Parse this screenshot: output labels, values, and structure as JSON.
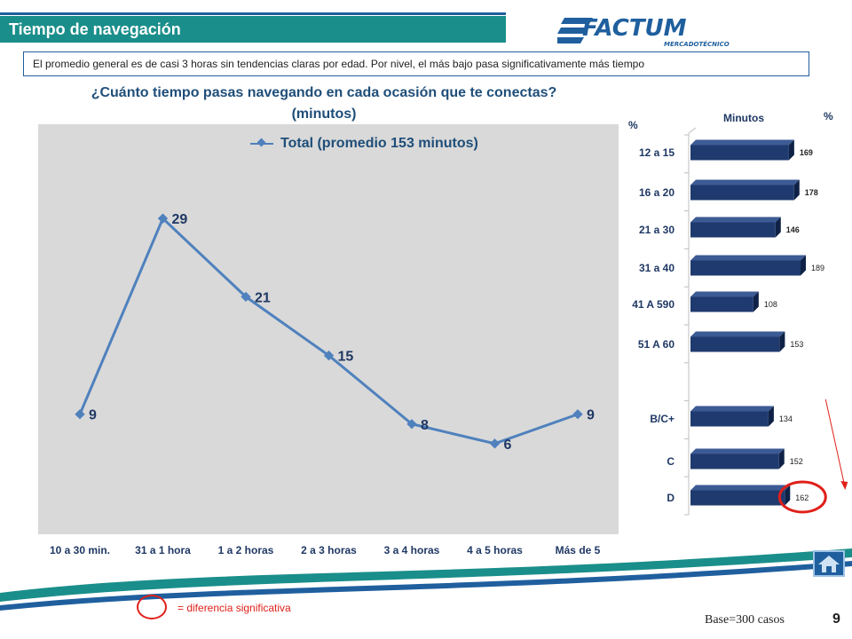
{
  "header": {
    "title": "Tiempo de navegación",
    "brand": "FACTUM",
    "brand_sub": "MERCADOTÉCNICO",
    "summary": "El promedio general es de casi 3 horas sin tendencias claras por edad. Por nivel, el más bajo pasa significativamente más tiempo"
  },
  "chart_data": [
    {
      "type": "line",
      "title": "¿Cuánto tiempo pasas navegando en cada ocasión que te conectas?",
      "subtitle": "(minutos)",
      "categories": [
        "10 a 30 min.",
        "31 a 1 hora",
        "1 a 2 horas",
        "2 a 3 horas",
        "3 a 4 horas",
        "4 a 5 horas",
        "Más de 5"
      ],
      "series": [
        {
          "name": "Total (promedio 153 minutos)",
          "values": [
            9,
            29,
            21,
            15,
            8,
            6,
            9
          ]
        }
      ],
      "ylim": [
        0,
        35
      ],
      "grid": false,
      "legend": "top",
      "colors": {
        "line": "#4f81bd",
        "panel": "#d9d9d9",
        "labels": "#1f3864"
      }
    },
    {
      "type": "bar",
      "orientation": "horizontal",
      "header_pct_left": "%",
      "header_minutes": "Minutos",
      "header_pct_right": "%",
      "categories": [
        "12 a 15",
        "16 a 20",
        "21 a 30",
        "31 a 40",
        "41 A 590",
        "51 A 60",
        "",
        "B/C+",
        "C",
        "D"
      ],
      "values": [
        169,
        178,
        146,
        189,
        108,
        153,
        null,
        134,
        152,
        162
      ],
      "bold_values": [
        true,
        true,
        true,
        false,
        false,
        false,
        false,
        false,
        false,
        false
      ],
      "highlighted": [
        "D"
      ],
      "colors": {
        "bar": "#1f3a6e",
        "bar_top": "#3c5a94",
        "highlight": "#e0201a"
      }
    }
  ],
  "footer": {
    "legend_note": "= diferencia significativa",
    "base": "Base=300 casos",
    "page": "9"
  }
}
